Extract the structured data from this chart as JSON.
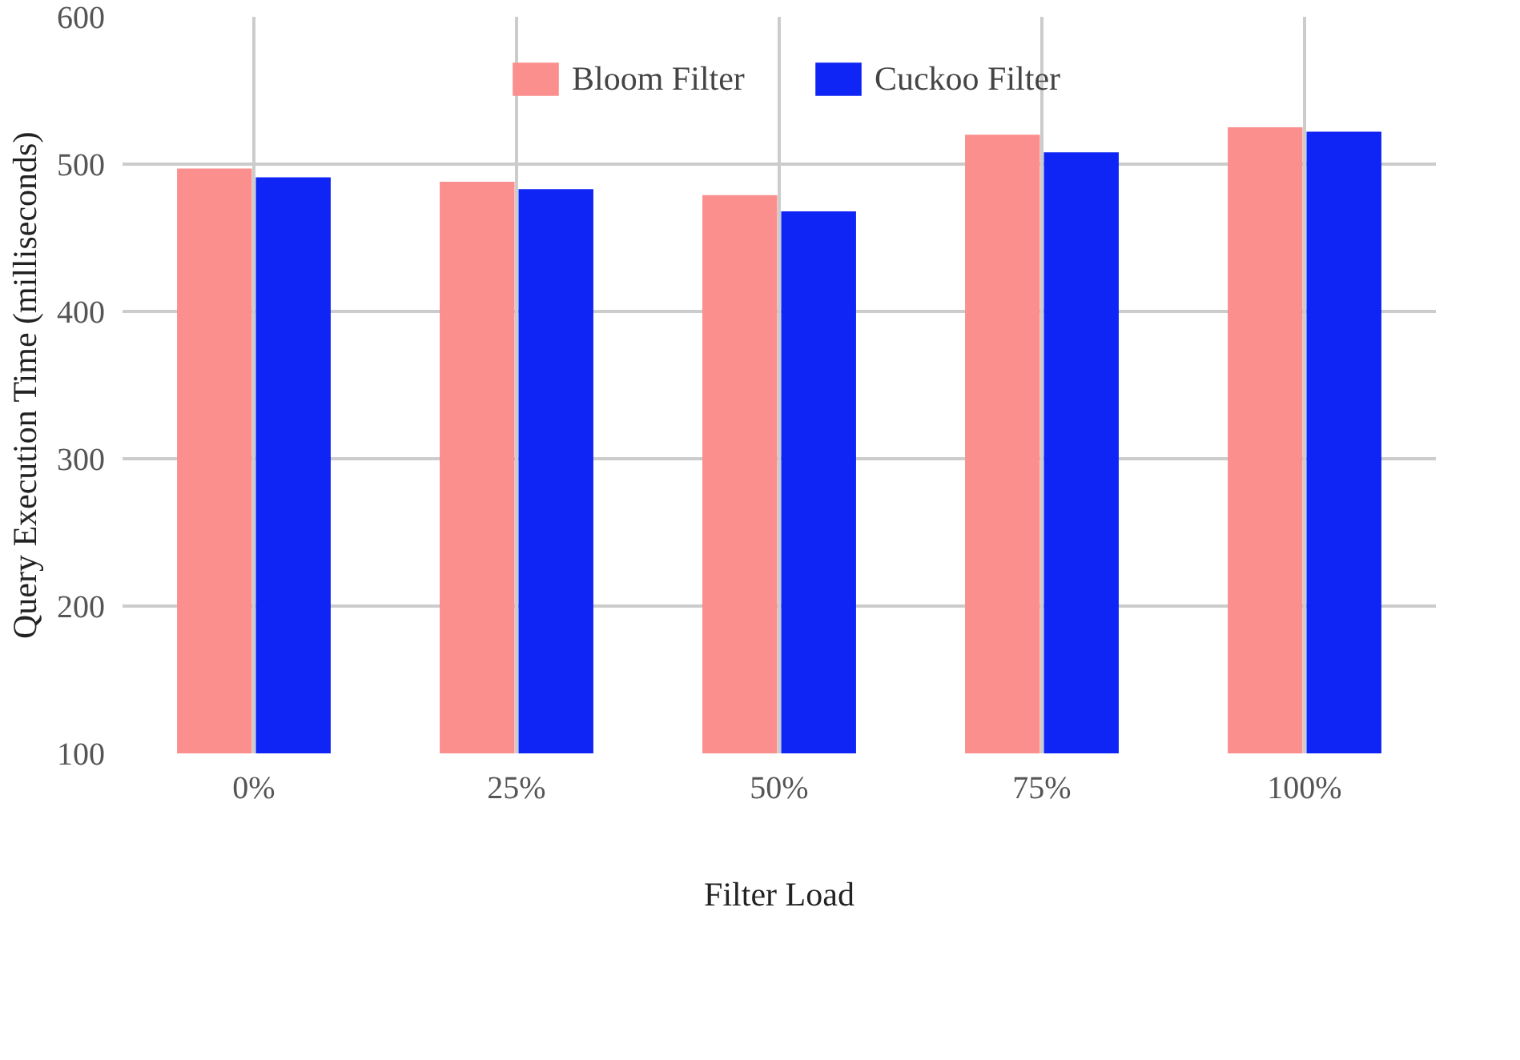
{
  "chart_data": {
    "type": "bar",
    "xlabel": "Filter Load",
    "ylabel": "Query Execution Time (milliseconds)",
    "categories": [
      "0%",
      "25%",
      "50%",
      "75%",
      "100%"
    ],
    "series": [
      {
        "name": "Bloom Filter",
        "color": "#fb8f8d",
        "values": [
          497,
          488,
          479,
          520,
          525
        ]
      },
      {
        "name": "Cuckoo Filter",
        "color": "#0f25f5",
        "values": [
          491,
          483,
          468,
          508,
          522
        ]
      }
    ],
    "ylim": [
      100,
      600
    ],
    "yticks": [
      100,
      200,
      300,
      400,
      500,
      600
    ],
    "grid": true,
    "legend": "top"
  }
}
